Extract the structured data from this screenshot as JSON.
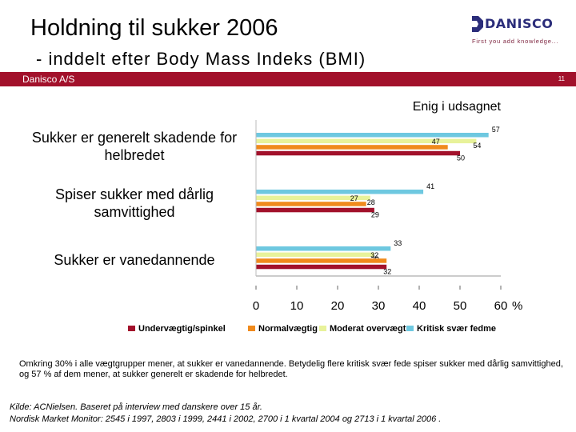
{
  "slide": {
    "title": "Holdning til sukker 2006",
    "subtitle": "- inddelt efter Body Mass Indeks (BMI)",
    "company": "Danisco A/S",
    "page_number": "11",
    "logo_text": "DANISCO",
    "logo_tagline": "First you add knowledge...",
    "caption": "Omkring 30% i alle vægtgrupper mener, at sukker er  vanedannende.  Betydelig flere kritisk svær fede spiser sukker med dårlig samvittighed, og 57 % af dem mener, at sukker generelt er skadende for helbredet.",
    "source_line1": "Kilde: ACNielsen. Baseret på interview med danskere over 15 år.",
    "source_line2": "Nordisk Market Monitor: 2545 i 1997, 2803 i 1999, 2441 i 2002,  2700 i 1 kvartal 2004 og 2713 i 1 kvartal 2006 ."
  },
  "colors": {
    "brand_red": "#a2112b",
    "logo_blue": "#2b2d7a"
  },
  "chart_data": {
    "type": "bar",
    "orientation": "horizontal",
    "title": "Enig i udsagnet",
    "categories": [
      "Sukker er generelt skadende for helbredet",
      "Spiser sukker med dårlig samvittighed",
      "Sukker er vanedannende"
    ],
    "series": [
      {
        "name": "Kritisk svær fedme",
        "color": "#6ec8e0",
        "values": [
          57,
          41,
          33
        ]
      },
      {
        "name": "Moderat overvægt",
        "color": "#e8f29a",
        "values": [
          54,
          28,
          29
        ]
      },
      {
        "name": "Normalvægtig",
        "color": "#f08a1c",
        "values": [
          47,
          27,
          32
        ]
      },
      {
        "name": "Undervægtig/spinkel",
        "color": "#a2112b",
        "values": [
          50,
          29,
          32
        ]
      }
    ],
    "x_ticks": [
      "0",
      "10",
      "20",
      "30",
      "40",
      "50",
      "60"
    ],
    "x_unit": "%",
    "xlim": [
      0,
      60
    ],
    "legend": [
      "Undervægtig/spinkel",
      "Normalvægtig",
      "Moderat overvægt",
      "Kritisk svær fedme"
    ],
    "legend_position": "bottom",
    "grid": false
  }
}
